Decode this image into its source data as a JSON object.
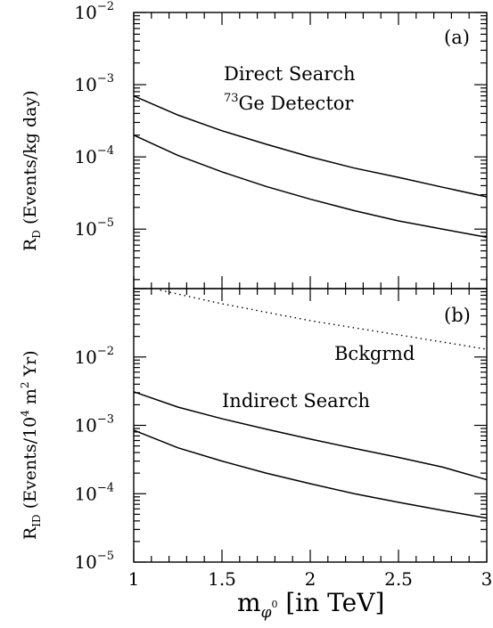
{
  "chart_data": [
    {
      "type": "line",
      "panel_label": "(a)",
      "ylabel_main": "R",
      "ylabel_sub": "D",
      "ylabel_rest": " (Events/kg day)",
      "yscale": "log",
      "ylim": [
        1.5e-06,
        0.01
      ],
      "xlim": [
        1,
        3
      ],
      "ytick_labels": [
        {
          "value": 0.01,
          "base": "10",
          "exp": "−2"
        },
        {
          "value": 0.001,
          "base": "10",
          "exp": "−3"
        },
        {
          "value": 0.0001,
          "base": "10",
          "exp": "−4"
        },
        {
          "value": 1e-05,
          "base": "10",
          "exp": "−5"
        }
      ],
      "annotations": {
        "line1": "Direct Search",
        "line2_sup": "73",
        "line2_rest": "Ge Detector"
      },
      "series": [
        {
          "style": "solid",
          "x": [
            1,
            1.25,
            1.5,
            1.75,
            2,
            2.25,
            2.5,
            2.75,
            3
          ],
          "y": [
            0.0007,
            0.00038,
            0.00023,
            0.00015,
            0.0001,
            7e-05,
            5.2e-05,
            3.8e-05,
            2.8e-05
          ]
        },
        {
          "style": "solid",
          "x": [
            1,
            1.25,
            1.5,
            1.75,
            2,
            2.25,
            2.5,
            2.75,
            3
          ],
          "y": [
            0.0002,
            0.000105,
            6.2e-05,
            3.9e-05,
            2.6e-05,
            1.8e-05,
            1.3e-05,
            1e-05,
            7.7e-06
          ]
        }
      ]
    },
    {
      "type": "line",
      "panel_label": "(b)",
      "ylabel_main": "R",
      "ylabel_sub": "ID",
      "ylabel_rest": " (Events/10",
      "ylabel_sup1": "4",
      "ylabel_rest2": " m",
      "ylabel_sup2": "2",
      "ylabel_rest3": " Yr)",
      "yscale": "log",
      "ylim": [
        1e-05,
        0.1
      ],
      "xlim": [
        1,
        3
      ],
      "ytick_labels": [
        {
          "value": 0.01,
          "base": "10",
          "exp": "−2"
        },
        {
          "value": 0.001,
          "base": "10",
          "exp": "−3"
        },
        {
          "value": 0.0001,
          "base": "10",
          "exp": "−4"
        },
        {
          "value": 1e-05,
          "base": "10",
          "exp": "−5"
        }
      ],
      "annotations": {
        "bckgrnd": "Bckgrnd",
        "indirect": "Indirect Search"
      },
      "series": [
        {
          "style": "dotted",
          "x": [
            1.15,
            1.5,
            2,
            2.5,
            3
          ],
          "y": [
            0.095,
            0.06,
            0.034,
            0.021,
            0.013
          ]
        },
        {
          "style": "solid",
          "x": [
            1,
            1.25,
            1.5,
            1.75,
            2,
            2.25,
            2.5,
            2.75,
            3
          ],
          "y": [
            0.0031,
            0.00185,
            0.00125,
            0.00088,
            0.00063,
            0.00046,
            0.00034,
            0.000245,
            0.00016
          ]
        },
        {
          "style": "solid",
          "x": [
            1,
            1.25,
            1.5,
            1.75,
            2,
            2.25,
            2.5,
            2.75,
            3
          ],
          "y": [
            0.00085,
            0.00047,
            0.0003,
            0.0002,
            0.00014,
            0.0001,
            7.5e-05,
            5.7e-05,
            4.4e-05
          ]
        }
      ]
    }
  ],
  "xaxis": {
    "ticks": [
      1,
      1.5,
      2,
      2.5,
      3
    ],
    "tick_labels": [
      "1",
      "1.5",
      "2",
      "2.5",
      "3"
    ],
    "label_main": "m",
    "label_sub": "φ",
    "label_sup": "0",
    "label_rest": " [in TeV]"
  }
}
